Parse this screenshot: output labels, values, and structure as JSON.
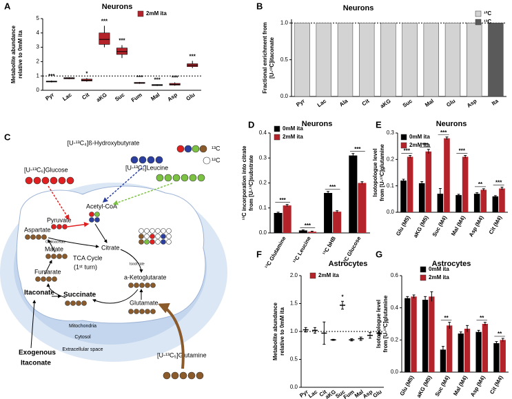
{
  "chart_data": [
    {
      "type": "box",
      "panel_label": "A",
      "title": "Neurons",
      "y_label": [
        "Metabolite abundance",
        "relative to 0mM ita"
      ],
      "categories": [
        "Pyr",
        "Lac",
        "Cit",
        "aKG",
        "Suc",
        "Fum",
        "Mal",
        "Asp",
        "Glu"
      ],
      "series": [
        {
          "name": "2mM ita",
          "color": "#b5232a",
          "min": [
            0.55,
            0.78,
            0.6,
            3.0,
            2.25,
            0.45,
            0.3,
            0.32,
            1.55
          ],
          "q1": [
            0.58,
            0.8,
            0.65,
            3.2,
            2.5,
            0.48,
            0.33,
            0.36,
            1.65
          ],
          "median": [
            0.6,
            0.85,
            0.7,
            3.55,
            2.7,
            0.5,
            0.36,
            0.4,
            1.75
          ],
          "q3": [
            0.64,
            0.88,
            0.78,
            4.0,
            2.95,
            0.55,
            0.4,
            0.48,
            1.85
          ],
          "max": [
            0.68,
            0.9,
            0.85,
            4.5,
            3.15,
            0.58,
            0.42,
            0.55,
            2.05
          ]
        }
      ],
      "significance": [
        "***",
        null,
        "*",
        "***",
        "***",
        "***",
        "***",
        "***",
        "***"
      ],
      "ylim": [
        0,
        5
      ],
      "yticks": [
        0,
        1,
        2,
        3,
        4,
        5
      ],
      "reference_line": 1
    },
    {
      "type": "stacked_bar",
      "panel_label": "B",
      "title": "Neurons",
      "y_label": [
        "Fractional enrichment from",
        "[U-¹³C]itaconate"
      ],
      "categories": [
        "Pyr",
        "Lac",
        "Ala",
        "Cit",
        "aKG",
        "Suc",
        "Mal",
        "Glu",
        "Asp",
        "Ita"
      ],
      "series": [
        {
          "name": "¹²C",
          "color": "#d3d3d3",
          "values": [
            1.0,
            1.0,
            1.0,
            1.0,
            1.0,
            1.0,
            1.0,
            1.0,
            1.0,
            0
          ]
        },
        {
          "name": "¹³C",
          "color": "#5a5a5a",
          "values": [
            0,
            0,
            0,
            0,
            0,
            0,
            0,
            0,
            0,
            1.0
          ]
        }
      ],
      "ylim": [
        0,
        1.05
      ],
      "yticks": [
        {
          "value": 0,
          "label": "0.0"
        },
        {
          "value": 0.5,
          "label": "0.5"
        },
        {
          "value": 1,
          "label": "1.0"
        }
      ],
      "reference_line": 1
    },
    {
      "type": "grouped_bar",
      "panel_label": "D",
      "title": "Neurons",
      "y_label": [
        "¹³C incorporation into citrate",
        "from [U-¹³C]substrate"
      ],
      "categories": [
        "¹³C Glutamine",
        "¹³C Leucine",
        "¹³C bHB",
        "¹³C Glucose"
      ],
      "series": [
        {
          "name": "0mM ita",
          "color": "#000000",
          "values": [
            0.08,
            0.01,
            0.16,
            0.31
          ],
          "errors": [
            0.003,
            0.002,
            0.006,
            0.008
          ]
        },
        {
          "name": "2mM ita",
          "color": "#b5232a",
          "values": [
            0.11,
            0.005,
            0.085,
            0.2
          ],
          "errors": [
            0.004,
            0.002,
            0.004,
            0.005
          ]
        }
      ],
      "significance": [
        "***",
        "***",
        "***",
        "***"
      ],
      "ylim": [
        0,
        0.4
      ],
      "yticks": [
        {
          "value": 0,
          "label": "0.0"
        },
        0.1,
        0.2,
        0.3,
        0.4
      ]
    },
    {
      "type": "grouped_bar",
      "panel_label": "E",
      "title": "Neurons",
      "y_label": [
        "Isotopologue level",
        "from [U-¹³C]glutamine"
      ],
      "categories": [
        "Glu (M5)",
        "aKG (M5)",
        "Suc (M4)",
        "Mal (M4)",
        "Asp (M4)",
        "Cit (M4)"
      ],
      "series": [
        {
          "name": "0mM ita",
          "color": "#000000",
          "values": [
            0.12,
            0.11,
            0.07,
            0.065,
            0.07,
            0.06
          ],
          "errors": [
            0.005,
            0.006,
            0.02,
            0.003,
            0.004,
            0.003
          ]
        },
        {
          "name": "2mM ita",
          "color": "#b5232a",
          "values": [
            0.21,
            0.23,
            0.28,
            0.21,
            0.085,
            0.09
          ],
          "errors": [
            0.005,
            0.008,
            0.005,
            0.005,
            0.004,
            0.005
          ]
        }
      ],
      "significance": [
        "***",
        "***",
        "***",
        "***",
        "**",
        "***"
      ],
      "ylim": [
        0,
        0.3
      ],
      "yticks": [
        {
          "value": 0,
          "label": "0.0"
        },
        0.1,
        0.2,
        0.3
      ]
    },
    {
      "type": "errorbar",
      "panel_label": "F",
      "title": "Astrocytes",
      "y_label": [
        "Metabolite abundance",
        "relative to 0mM ita"
      ],
      "categories": [
        "Pyr",
        "Lac",
        "Cit",
        "aKG",
        "Suc",
        "Fum",
        "Mal",
        "Asp",
        "Glu"
      ],
      "series": [
        {
          "name": "2mM ita",
          "color": "#b5232a",
          "values": [
            1.03,
            1.02,
            0.97,
            0.85,
            1.47,
            0.85,
            0.87,
            0.93,
            0.97
          ],
          "errors": [
            0.04,
            0.05,
            0.2,
            0.01,
            0.07,
            0.02,
            0.03,
            0.05,
            0.04
          ]
        }
      ],
      "significance": [
        null,
        null,
        null,
        null,
        "*",
        null,
        null,
        null,
        null
      ],
      "ylim": [
        0,
        2
      ],
      "yticks": [
        {
          "value": 0,
          "label": "0.0"
        },
        0.5,
        {
          "value": 1,
          "label": "1.0"
        },
        1.5,
        {
          "value": 2,
          "label": "2.0"
        }
      ],
      "reference_line": 1
    },
    {
      "type": "grouped_bar",
      "panel_label": "G",
      "title": "Astrocytes",
      "y_label": [
        "Isotopologue level",
        "from [U-¹³C]glutamine"
      ],
      "categories": [
        "Glu (M5)",
        "aKG (M5)",
        "Suc (M4)",
        "Mal (M4)",
        "Asp (M4)",
        "Cit (M4)"
      ],
      "series": [
        {
          "name": "0mM ita",
          "color": "#000000",
          "values": [
            0.46,
            0.45,
            0.14,
            0.24,
            0.25,
            0.18
          ],
          "errors": [
            0.01,
            0.02,
            0.02,
            0.01,
            0.01,
            0.01
          ]
        },
        {
          "name": "2mM ita",
          "color": "#b5232a",
          "values": [
            0.47,
            0.47,
            0.29,
            0.27,
            0.3,
            0.2
          ],
          "errors": [
            0.01,
            0.03,
            0.02,
            0.02,
            0.01,
            0.01
          ]
        }
      ],
      "significance": [
        null,
        null,
        "**",
        null,
        "**",
        "**"
      ],
      "ylim": [
        0,
        0.6
      ],
      "yticks": [
        {
          "value": 0,
          "label": "0.0"
        },
        0.2,
        0.4,
        0.6
      ]
    }
  ],
  "diagram": {
    "panel_label": "C",
    "labels": [
      "[U-¹³C₄]ß-Hydroxybutyrate",
      "[U-¹³C₆]Glucose",
      "[U-¹³C₆]Leucine",
      "¹³C",
      "¹²C",
      "Acetyl-CoA",
      "Pyruvate",
      "Aspartate",
      "Oxaloacetate",
      "Citrate",
      "Malate",
      "TCA Cycle",
      "(1ˢᵗ turn)",
      "Isocit rate",
      "Fumarate",
      "a-Ketoglutarate",
      "Itaconate",
      "Succinate",
      "Glutamate",
      "Mitochondria",
      "Cytosol",
      "Extracellular space",
      "Exogenous",
      "Itaconate",
      "[U-¹³C₅]Glutamine"
    ]
  }
}
